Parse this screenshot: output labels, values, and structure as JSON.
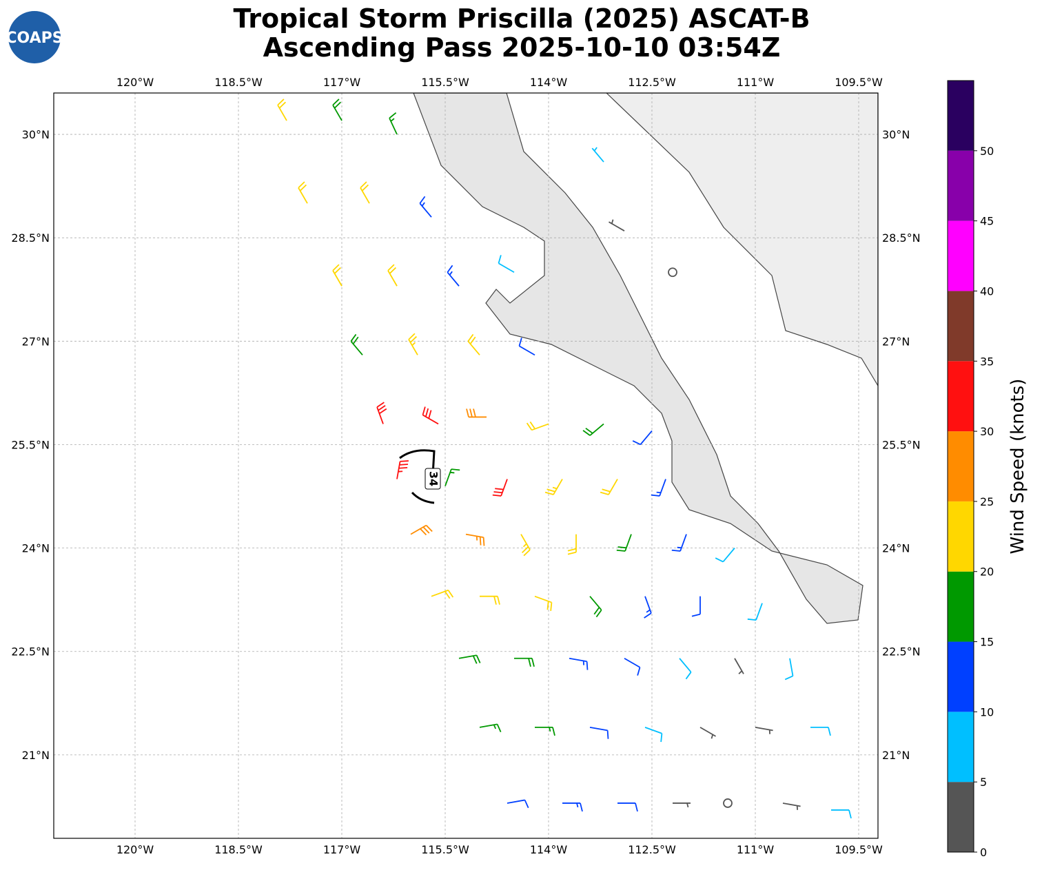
{
  "chart_data": {
    "type": "barbs",
    "title": [
      "Tropical Storm Priscilla (2025) ASCAT-B",
      "Ascending Pass 2025-10-10 03:54Z"
    ],
    "logo": "COAPS",
    "xlim": [
      -121.18,
      -109.22
    ],
    "ylim": [
      19.79,
      30.6
    ],
    "xticks": [
      {
        "value": -120,
        "label": "120°W"
      },
      {
        "value": -118.5,
        "label": "118.5°W"
      },
      {
        "value": -117,
        "label": "117°W"
      },
      {
        "value": -115.5,
        "label": "115.5°W"
      },
      {
        "value": -114,
        "label": "114°W"
      },
      {
        "value": -112.5,
        "label": "112.5°W"
      },
      {
        "value": -111,
        "label": "111°W"
      },
      {
        "value": -109.5,
        "label": "109.5°W"
      }
    ],
    "yticks": [
      {
        "value": 30,
        "label": "30°N"
      },
      {
        "value": 28.5,
        "label": "28.5°N"
      },
      {
        "value": 27,
        "label": "27°N"
      },
      {
        "value": 25.5,
        "label": "25.5°N"
      },
      {
        "value": 24,
        "label": "24°N"
      },
      {
        "value": 22.5,
        "label": "22.5°N"
      },
      {
        "value": 21,
        "label": "21°N"
      }
    ],
    "grid": true,
    "contour": {
      "level": 34
    },
    "colorbar": {
      "label": "Wind Speed (knots)",
      "lim": [
        0,
        55
      ],
      "bounds": [
        0,
        5,
        10,
        15,
        20,
        25,
        30,
        35,
        40,
        45,
        50,
        55
      ],
      "colors": [
        "#555555",
        "#00bfff",
        "#0040ff",
        "#009900",
        "#ffd700",
        "#ff8c00",
        "#ff1010",
        "#803a2a",
        "#ff00ff",
        "#8800aa",
        "#2a0060"
      ],
      "ticks": [
        0,
        5,
        10,
        15,
        20,
        25,
        30,
        35,
        40,
        45,
        50
      ]
    },
    "barbs": {
      "lon": [
        -117.8,
        -117.0,
        -116.2,
        -117.5,
        -116.6,
        -115.7,
        -117.0,
        -116.2,
        -115.3,
        -114.5,
        -116.7,
        -115.9,
        -115.0,
        -114.2,
        -116.4,
        -115.6,
        -114.9,
        -114.0,
        -113.2,
        -112.5,
        -116.2,
        -115.5,
        -114.6,
        -113.8,
        -113.0,
        -112.3,
        -116.0,
        -115.2,
        -114.4,
        -113.6,
        -112.8,
        -112.0,
        -111.3,
        -115.7,
        -115.0,
        -114.2,
        -113.4,
        -112.6,
        -111.8,
        -110.9,
        -115.3,
        -114.5,
        -113.7,
        -112.9,
        -112.1,
        -111.3,
        -110.5,
        -115.0,
        -114.2,
        -113.4,
        -112.6,
        -111.8,
        -111.0,
        -110.2,
        -114.6,
        -113.8,
        -113.0,
        -112.2,
        -111.4,
        -110.6,
        -109.9,
        -113.2,
        -112.9,
        -112.2
      ],
      "lat": [
        30.2,
        30.2,
        30.0,
        29.0,
        29.0,
        28.8,
        27.8,
        27.8,
        27.8,
        28.0,
        26.8,
        26.8,
        26.8,
        26.8,
        25.8,
        25.8,
        25.9,
        25.8,
        25.8,
        25.7,
        25.0,
        24.9,
        25.0,
        25.0,
        25.0,
        25.0,
        24.2,
        24.2,
        24.2,
        24.2,
        24.2,
        24.2,
        24.0,
        23.3,
        23.3,
        23.3,
        23.3,
        23.3,
        23.3,
        23.2,
        22.4,
        22.4,
        22.4,
        22.4,
        22.4,
        22.4,
        22.4,
        21.4,
        21.4,
        21.4,
        21.4,
        21.4,
        21.4,
        21.4,
        20.3,
        20.3,
        20.3,
        20.3,
        20.3,
        20.3,
        20.2,
        29.6,
        28.6,
        28.0
      ],
      "speed": [
        20,
        18,
        16,
        22,
        20,
        14,
        22,
        20,
        14,
        8,
        18,
        24,
        20,
        12,
        32,
        30,
        28,
        22,
        18,
        12,
        34,
        16,
        30,
        24,
        20,
        14,
        28,
        26,
        24,
        22,
        18,
        14,
        8,
        22,
        22,
        20,
        18,
        14,
        10,
        8,
        18,
        18,
        14,
        12,
        8,
        4,
        8,
        16,
        16,
        12,
        8,
        3,
        4,
        8,
        12,
        14,
        10,
        4,
        2,
        4,
        8,
        7,
        4,
        2
      ],
      "direction": [
        330,
        330,
        335,
        330,
        330,
        320,
        330,
        330,
        320,
        300,
        320,
        330,
        320,
        300,
        340,
        300,
        270,
        250,
        230,
        220,
        10,
        20,
        200,
        210,
        210,
        200,
        60,
        100,
        150,
        180,
        200,
        200,
        220,
        70,
        90,
        110,
        140,
        160,
        180,
        200,
        80,
        90,
        100,
        120,
        140,
        150,
        170,
        80,
        90,
        100,
        110,
        120,
        100,
        90,
        80,
        90,
        90,
        90,
        0,
        100,
        90,
        320,
        300,
        0
      ]
    }
  }
}
